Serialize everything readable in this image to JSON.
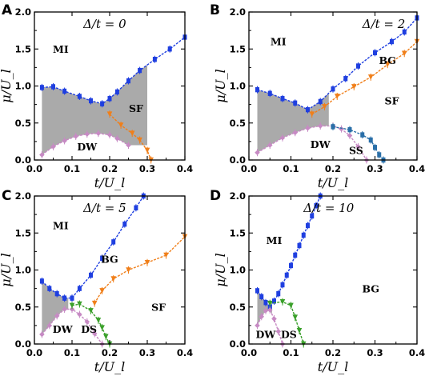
{
  "colors": {
    "mi": "#1f3fe0",
    "bg": "#f07f1a",
    "dw": "#c78ac4",
    "ss": "#2a6fa8",
    "ds": "#3aa02a",
    "shade": "#aaaaaa"
  },
  "chart_data": [
    {
      "type": "line",
      "panel": "A",
      "title": "Δ/t = 0",
      "xlabel": "t/U_l",
      "ylabel": "μ/U_l",
      "xlim": [
        0,
        0.4
      ],
      "ylim": [
        0,
        2.0
      ],
      "xticks": [
        "0.0",
        "0.1",
        "0.2",
        "0.3",
        "0.4"
      ],
      "yticks": [
        "0.0",
        "0.5",
        "1.0",
        "1.5",
        "2.0"
      ],
      "series": [
        {
          "color_key": "mi",
          "marker": "square",
          "x": [
            0.02,
            0.05,
            0.08,
            0.12,
            0.15,
            0.18,
            0.2,
            0.22,
            0.25,
            0.28,
            0.32,
            0.36,
            0.4
          ],
          "y": [
            0.98,
            0.99,
            0.93,
            0.86,
            0.8,
            0.76,
            0.83,
            0.92,
            1.07,
            1.21,
            1.36,
            1.5,
            1.66
          ]
        },
        {
          "color_key": "bg",
          "marker": "triangle-down",
          "x": [
            0.2,
            0.23,
            0.26,
            0.28,
            0.3,
            0.31
          ],
          "y": [
            0.62,
            0.47,
            0.36,
            0.27,
            0.13,
            0.0
          ]
        },
        {
          "color_key": "dw",
          "marker": "diamond",
          "x": [
            0.02,
            0.05,
            0.08,
            0.11,
            0.14,
            0.17,
            0.2,
            0.22,
            0.25
          ],
          "y": [
            0.07,
            0.18,
            0.26,
            0.32,
            0.35,
            0.36,
            0.34,
            0.29,
            0.2
          ]
        }
      ],
      "shade_upper": "mi",
      "shade_lower": "dw",
      "shade_range": [
        0.02,
        0.3
      ],
      "labels": [
        "MI",
        "SF",
        "DW"
      ]
    },
    {
      "type": "line",
      "panel": "B",
      "title": "Δ/t = 2",
      "xlabel": "t/U_l",
      "ylabel": "μ/U_l",
      "xlim": [
        0,
        0.4
      ],
      "ylim": [
        0,
        2.0
      ],
      "xticks": [
        "0.0",
        "0.1",
        "0.2",
        "0.3",
        "0.4"
      ],
      "yticks": [
        "0.0",
        "0.5",
        "1.0",
        "1.5",
        "2.0"
      ],
      "series": [
        {
          "color_key": "mi",
          "marker": "square",
          "x": [
            0.02,
            0.05,
            0.08,
            0.11,
            0.14,
            0.17,
            0.2,
            0.23,
            0.26,
            0.3,
            0.34,
            0.37,
            0.4
          ],
          "y": [
            0.95,
            0.9,
            0.83,
            0.77,
            0.68,
            0.79,
            0.96,
            1.1,
            1.27,
            1.45,
            1.6,
            1.73,
            1.92
          ]
        },
        {
          "color_key": "bg",
          "marker": "triangle-down",
          "x": [
            0.15,
            0.18,
            0.21,
            0.25,
            0.29,
            0.33,
            0.37,
            0.4
          ],
          "y": [
            0.62,
            0.72,
            0.86,
            0.99,
            1.12,
            1.29,
            1.44,
            1.6
          ]
        },
        {
          "color_key": "dw",
          "marker": "diamond",
          "x": [
            0.02,
            0.05,
            0.08,
            0.11,
            0.14,
            0.17,
            0.2,
            0.22,
            0.24,
            0.26,
            0.28
          ],
          "y": [
            0.1,
            0.2,
            0.3,
            0.37,
            0.43,
            0.46,
            0.46,
            0.42,
            0.33,
            0.18,
            0.0
          ]
        },
        {
          "color_key": "ss",
          "marker": "square",
          "x": [
            0.2,
            0.24,
            0.27,
            0.29,
            0.3,
            0.31,
            0.32
          ],
          "y": [
            0.45,
            0.41,
            0.34,
            0.27,
            0.17,
            0.07,
            0.0
          ]
        }
      ],
      "shade_upper": "mi",
      "shade_lower": "dw",
      "shade_range": [
        0.02,
        0.19
      ],
      "labels": [
        "MI",
        "BG",
        "SF",
        "DW",
        "SS"
      ]
    },
    {
      "type": "line",
      "panel": "C",
      "title": "Δ/t = 5",
      "xlabel": "t/U_l",
      "ylabel": "μ/U_l",
      "xlim": [
        0,
        0.4
      ],
      "ylim": [
        0,
        2.0
      ],
      "xticks": [
        "0.0",
        "0.1",
        "0.2",
        "0.3",
        "0.4"
      ],
      "yticks": [
        "0.0",
        "0.5",
        "1.0",
        "1.5",
        "2.0"
      ],
      "series": [
        {
          "color_key": "mi",
          "marker": "square",
          "x": [
            0.02,
            0.04,
            0.06,
            0.08,
            0.1,
            0.12,
            0.15,
            0.18,
            0.21,
            0.24,
            0.27,
            0.29
          ],
          "y": [
            0.85,
            0.75,
            0.68,
            0.62,
            0.62,
            0.75,
            0.93,
            1.16,
            1.38,
            1.62,
            1.84,
            2.0
          ]
        },
        {
          "color_key": "bg",
          "marker": "triangle-down",
          "x": [
            0.16,
            0.18,
            0.21,
            0.25,
            0.3,
            0.35,
            0.4
          ],
          "y": [
            0.55,
            0.72,
            0.88,
            1.0,
            1.1,
            1.2,
            1.45
          ]
        },
        {
          "color_key": "dw",
          "marker": "diamond",
          "x": [
            0.02,
            0.04,
            0.06,
            0.08,
            0.1,
            0.12,
            0.14,
            0.16,
            0.18
          ],
          "y": [
            0.13,
            0.25,
            0.38,
            0.47,
            0.47,
            0.4,
            0.3,
            0.14,
            0.0
          ]
        },
        {
          "color_key": "ds",
          "marker": "triangle-down",
          "x": [
            0.1,
            0.12,
            0.15,
            0.17,
            0.18,
            0.19,
            0.2
          ],
          "y": [
            0.52,
            0.54,
            0.45,
            0.32,
            0.22,
            0.1,
            0.0
          ]
        }
      ],
      "shade_upper": "mi",
      "shade_lower": "dw",
      "shade_range": [
        0.02,
        0.09
      ],
      "labels": [
        "MI",
        "BG",
        "SF",
        "DW",
        "DS"
      ]
    },
    {
      "type": "line",
      "panel": "D",
      "title": "Δ/t = 10",
      "xlabel": "t/U_l",
      "ylabel": "μ/U_l",
      "xlim": [
        0,
        0.4
      ],
      "ylim": [
        0,
        2.0
      ],
      "xticks": [
        "0.0",
        "0.1",
        "0.2",
        "0.3",
        "0.4"
      ],
      "yticks": [
        "0.0",
        "0.5",
        "1.0",
        "1.5",
        "2.0"
      ],
      "series": [
        {
          "color_key": "mi",
          "marker": "square",
          "x": [
            0.02,
            0.03,
            0.04,
            0.05,
            0.06,
            0.07,
            0.08,
            0.09,
            0.1,
            0.11,
            0.12,
            0.13,
            0.14,
            0.15,
            0.16,
            0.17
          ],
          "y": [
            0.72,
            0.64,
            0.56,
            0.5,
            0.58,
            0.68,
            0.8,
            0.93,
            1.06,
            1.2,
            1.33,
            1.47,
            1.6,
            1.73,
            1.87,
            2.0
          ]
        },
        {
          "color_key": "dw",
          "marker": "diamond",
          "x": [
            0.02,
            0.03,
            0.04,
            0.05,
            0.06,
            0.07,
            0.08
          ],
          "y": [
            0.25,
            0.37,
            0.45,
            0.46,
            0.34,
            0.17,
            0.0
          ]
        },
        {
          "color_key": "ds",
          "marker": "triangle-down",
          "x": [
            0.05,
            0.08,
            0.1,
            0.11,
            0.12,
            0.13
          ],
          "y": [
            0.55,
            0.57,
            0.52,
            0.36,
            0.18,
            0.0
          ]
        }
      ],
      "shade_upper": "mi",
      "shade_lower": "dw",
      "shade_range": [
        0.02,
        0.055
      ],
      "labels": [
        "MI",
        "BG",
        "DW",
        "DS"
      ]
    }
  ]
}
